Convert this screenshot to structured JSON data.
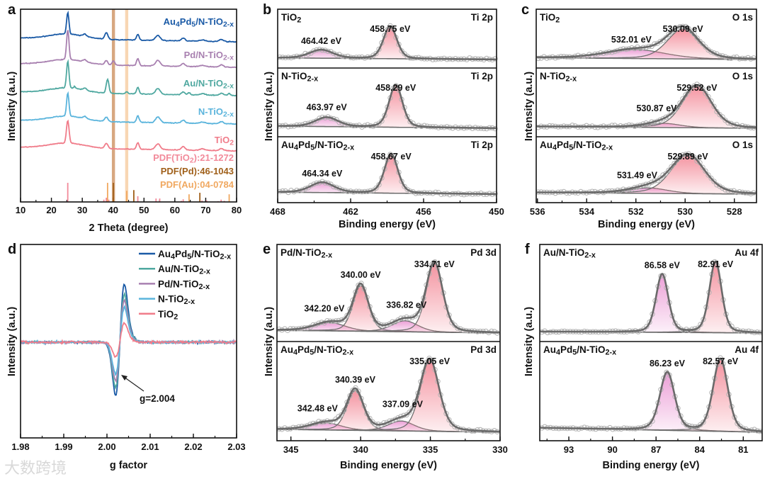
{
  "watermark": "大数跨境",
  "chart_data": [
    {
      "id": "a",
      "panel_letter": "a",
      "type": "line",
      "title": "",
      "xlabel": "2 Theta (degree)",
      "ylabel": "Intensity (a.u.)",
      "xlim": [
        10,
        80
      ],
      "xticks": [
        10,
        20,
        30,
        40,
        50,
        60,
        70,
        80
      ],
      "series": [
        {
          "name": "Au4Pd5/N-TiO2-x",
          "color": "#1a5aa6",
          "offset": 226,
          "peaks": [
            [
              25.3,
              30,
              0.9
            ],
            [
              30.8,
              3,
              1.2
            ],
            [
              37.8,
              9,
              1.2
            ],
            [
              48.0,
              8,
              1.0
            ],
            [
              54.5,
              7,
              1.8
            ],
            [
              62.7,
              4,
              1.4
            ],
            [
              69,
              2,
              2
            ],
            [
              75.1,
              3,
              1.6
            ]
          ]
        },
        {
          "name": "Pd/N-TiO2-x",
          "color": "#a880b0",
          "offset": 190,
          "peaks": [
            [
              25.3,
              42,
              0.9
            ],
            [
              30.8,
              3,
              1.2
            ],
            [
              37.8,
              6,
              1.1
            ],
            [
              40.1,
              6,
              1.0
            ],
            [
              48.0,
              10,
              1.0
            ],
            [
              54.5,
              8,
              1.8
            ],
            [
              62.7,
              4,
              1.4
            ],
            [
              69,
              2,
              2
            ],
            [
              75.1,
              3,
              1.6
            ]
          ]
        },
        {
          "name": "Au/N-TiO2-x",
          "color": "#4fa8a0",
          "offset": 150,
          "peaks": [
            [
              25.3,
              38,
              0.9
            ],
            [
              27.5,
              3,
              0.6
            ],
            [
              30.8,
              3,
              1.2
            ],
            [
              38.2,
              20,
              1.0
            ],
            [
              44.4,
              3,
              0.8
            ],
            [
              48.0,
              9,
              1.0
            ],
            [
              54.5,
              8,
              1.8
            ],
            [
              62.7,
              4,
              1.4
            ],
            [
              64.6,
              3,
              1.0
            ],
            [
              69,
              2,
              2
            ],
            [
              75.1,
              3,
              1.6
            ],
            [
              77.6,
              3,
              1.0
            ]
          ]
        },
        {
          "name": "N-TiO2-x",
          "color": "#5ab4dc",
          "offset": 110,
          "peaks": [
            [
              25.3,
              33,
              0.9
            ],
            [
              30.8,
              3,
              1.2
            ],
            [
              37.8,
              6,
              1.2
            ],
            [
              48.0,
              9,
              1.0
            ],
            [
              54.5,
              8,
              1.8
            ],
            [
              62.7,
              4,
              1.4
            ],
            [
              69,
              2,
              2
            ],
            [
              75.1,
              3,
              1.6
            ]
          ]
        },
        {
          "name": "TiO2",
          "color": "#f07c8a",
          "offset": 72,
          "peaks": [
            [
              25.3,
              32,
              1.0
            ],
            [
              37.8,
              7,
              1.2
            ],
            [
              48.0,
              9,
              1.0
            ],
            [
              54.5,
              8,
              1.8
            ],
            [
              62.7,
              5,
              1.4
            ],
            [
              69,
              2,
              2
            ],
            [
              75.1,
              3,
              1.6
            ]
          ]
        }
      ],
      "references": [
        {
          "label": "PDF(TiO2):21-1272",
          "color": "#f28a9a",
          "lines": [
            [
              25.3,
              100
            ],
            [
              37.0,
              12
            ],
            [
              37.8,
              22
            ],
            [
              38.6,
              12
            ],
            [
              48.0,
              30
            ],
            [
              53.9,
              18
            ],
            [
              55.1,
              18
            ],
            [
              62.1,
              6
            ],
            [
              62.7,
              14
            ],
            [
              68.8,
              8
            ],
            [
              70.3,
              8
            ],
            [
              74.0,
              4
            ],
            [
              75.0,
              12
            ],
            [
              76.0,
              6
            ]
          ]
        },
        {
          "label": "PDF(Pd):46-1043",
          "color": "#a0601a",
          "lines": [
            [
              40.1,
              100
            ],
            [
              46.7,
              62
            ],
            [
              68.1,
              48
            ]
          ]
        },
        {
          "label": "PDF(Au):04-0784",
          "color": "#f0a860",
          "lines": [
            [
              38.2,
              100
            ],
            [
              44.4,
              58
            ],
            [
              64.6,
              40
            ],
            [
              77.6,
              40
            ]
          ]
        }
      ],
      "highlight_bands": [
        {
          "x": 40.1,
          "color": "#c98a55"
        },
        {
          "x": 44.4,
          "color": "#f5c89a"
        }
      ]
    },
    {
      "id": "b",
      "panel_letter": "b",
      "type": "line",
      "xlabel": "Binding energy (eV)",
      "ylabel": "Intensity (a.u.)",
      "xlim": [
        468,
        450
      ],
      "xticks": [
        468,
        462,
        456,
        450
      ],
      "minor_step": 3,
      "subpanels": [
        {
          "sample": "TiO2",
          "orbital": "Ti 2p",
          "background": [
            0.05,
            0.0
          ],
          "components": [
            {
              "center": 464.42,
              "label": "464.42 eV",
              "height": 0.26,
              "fwhm": 2.3,
              "color": "#e98fd0"
            },
            {
              "center": 458.75,
              "label": "458.75 eV",
              "height": 1.0,
              "fwhm": 1.3,
              "color": "#f2808f"
            }
          ]
        },
        {
          "sample": "N-TiO2-x",
          "orbital": "Ti 2p",
          "background": [
            0.05,
            0.0
          ],
          "components": [
            {
              "center": 463.97,
              "label": "463.97 eV",
              "height": 0.22,
              "fwhm": 2.2,
              "color": "#e98fd0"
            },
            {
              "center": 458.29,
              "label": "458.29 eV",
              "height": 1.0,
              "fwhm": 1.3,
              "color": "#f2808f"
            }
          ]
        },
        {
          "sample": "Au4Pd5/N-TiO2-x",
          "orbital": "Ti 2p",
          "background": [
            0.05,
            0.0
          ],
          "components": [
            {
              "center": 464.34,
              "label": "464.34 eV",
              "height": 0.26,
              "fwhm": 2.3,
              "color": "#e98fd0"
            },
            {
              "center": 458.67,
              "label": "458.67 eV",
              "height": 1.0,
              "fwhm": 1.3,
              "color": "#f2808f"
            }
          ]
        }
      ]
    },
    {
      "id": "c",
      "panel_letter": "c",
      "type": "line",
      "xlabel": "Binding energy (eV)",
      "ylabel": "Intensity (a.u.)",
      "xlim": [
        536.05,
        527.1
      ],
      "xticks": [
        536,
        534,
        532,
        530,
        528
      ],
      "minor_step": 1,
      "subpanels": [
        {
          "sample": "TiO2",
          "orbital": "O 1s",
          "background": [
            0.06,
            0.0
          ],
          "components": [
            {
              "center": 532.01,
              "label": "532.01 eV",
              "height": 0.3,
              "fwhm": 2.8,
              "color": "#e98fd0"
            },
            {
              "center": 530.09,
              "label": "530.09 eV",
              "height": 1.0,
              "fwhm": 1.5,
              "color": "#f2808f"
            }
          ]
        },
        {
          "sample": "N-TiO2-x",
          "orbital": "O 1s",
          "background": [
            0.04,
            0.0
          ],
          "components": [
            {
              "center": 530.87,
              "label": "530.87 eV",
              "height": 0.1,
              "fwhm": 1.6,
              "color": "#e98fd0"
            },
            {
              "center": 529.52,
              "label": "529.52 eV",
              "height": 1.0,
              "fwhm": 1.4,
              "color": "#f2808f"
            }
          ]
        },
        {
          "sample": "Au4Pd5/N-TiO2-x",
          "orbital": "O 1s",
          "background": [
            0.04,
            0.0
          ],
          "components": [
            {
              "center": 531.49,
              "label": "531.49 eV",
              "height": 0.14,
              "fwhm": 1.8,
              "color": "#e98fd0"
            },
            {
              "center": 529.89,
              "label": "529.89 eV",
              "height": 1.0,
              "fwhm": 1.6,
              "color": "#f2808f"
            }
          ]
        }
      ]
    },
    {
      "id": "d",
      "panel_letter": "d",
      "type": "line",
      "xlabel": "g factor",
      "ylabel": "Intensity (a.u.)",
      "xlim": [
        1.98,
        2.03
      ],
      "ylim": [
        -1.8,
        1.84
      ],
      "xticks": [
        "1.98",
        "1.99",
        "2.00",
        "2.01",
        "2.02",
        "2.03"
      ],
      "center_g": 2.003,
      "half_width": 0.001,
      "series": [
        {
          "name": "Au4Pd5/N-TiO2-x",
          "color": "#1a5aa6",
          "max": 1.0,
          "min": -1.0
        },
        {
          "name": "Au/N-TiO2-x",
          "color": "#4fa8a0",
          "max": 0.82,
          "min": -0.85
        },
        {
          "name": "Pd/N-TiO2-x",
          "color": "#a880b0",
          "max": 0.72,
          "min": -0.72
        },
        {
          "name": "N-TiO2-x",
          "color": "#5ab4dc",
          "max": 0.6,
          "min": -0.6
        },
        {
          "name": "TiO2",
          "color": "#f07c8a",
          "max": 0.33,
          "min": -0.28
        }
      ],
      "annotation": "g=2.004",
      "legend_position": "top-right"
    },
    {
      "id": "e",
      "panel_letter": "e",
      "type": "line",
      "xlabel": "Binding energy (eV)",
      "ylabel": "Intensity (a.u.)",
      "xlim": [
        346,
        330
      ],
      "xticks": [
        345,
        340,
        335,
        330
      ],
      "minor_step": 2.5,
      "subpanels": [
        {
          "sample": "Pd/N-TiO2-x",
          "orbital": "Pd 3d",
          "background": [
            0.04,
            0.0
          ],
          "components": [
            {
              "center": 342.2,
              "label": "342.20 eV",
              "height": 0.12,
              "fwhm": 2.6,
              "color": "#e98fd0"
            },
            {
              "center": 340.0,
              "label": "340.00 eV",
              "height": 0.66,
              "fwhm": 1.3,
              "color": "#f2808f"
            },
            {
              "center": 336.82,
              "label": "336.82 eV",
              "height": 0.16,
              "fwhm": 2.2,
              "color": "#e98fd0"
            },
            {
              "center": 334.71,
              "label": "334.71 eV",
              "height": 1.0,
              "fwhm": 1.4,
              "color": "#f2808f"
            }
          ]
        },
        {
          "sample": "Au4Pd5/N-TiO2-x",
          "orbital": "Pd 3d",
          "background": [
            0.04,
            0.0
          ],
          "components": [
            {
              "center": 342.48,
              "label": "342.48 eV",
              "height": 0.1,
              "fwhm": 2.6,
              "color": "#e98fd0"
            },
            {
              "center": 340.39,
              "label": "340.39 eV",
              "height": 0.56,
              "fwhm": 1.4,
              "color": "#f2808f"
            },
            {
              "center": 337.09,
              "label": "337.09 eV",
              "height": 0.14,
              "fwhm": 2.2,
              "color": "#e98fd0"
            },
            {
              "center": 335.05,
              "label": "335.05 eV",
              "height": 1.0,
              "fwhm": 1.6,
              "color": "#f2808f"
            }
          ]
        }
      ]
    },
    {
      "id": "f",
      "panel_letter": "f",
      "type": "line",
      "xlabel": "Binding energy (eV)",
      "ylabel": "Intensity (a.u.)",
      "xlim": [
        95,
        79.7
      ],
      "xticks": [
        93,
        90,
        87,
        84,
        81
      ],
      "minor_step": 1.5,
      "subpanels": [
        {
          "sample": "Au/N-TiO2-x",
          "orbital": "Au 4f",
          "background": [
            0.02,
            0.0
          ],
          "components": [
            {
              "center": 86.58,
              "label": "86.58 eV",
              "height": 0.82,
              "fwhm": 1.0,
              "color": "#e98fd0"
            },
            {
              "center": 82.91,
              "label": "82.91 eV",
              "height": 1.0,
              "fwhm": 1.0,
              "color": "#f2808f"
            }
          ]
        },
        {
          "sample": "Au4Pd5/N-TiO2-x",
          "orbital": "Au 4f",
          "background": [
            0.06,
            0.0
          ],
          "components": [
            {
              "center": 86.23,
              "label": "86.23 eV",
              "height": 0.8,
              "fwhm": 1.2,
              "color": "#e98fd0"
            },
            {
              "center": 82.57,
              "label": "82.57 eV",
              "height": 1.0,
              "fwhm": 1.2,
              "color": "#f2808f"
            }
          ]
        }
      ]
    }
  ]
}
